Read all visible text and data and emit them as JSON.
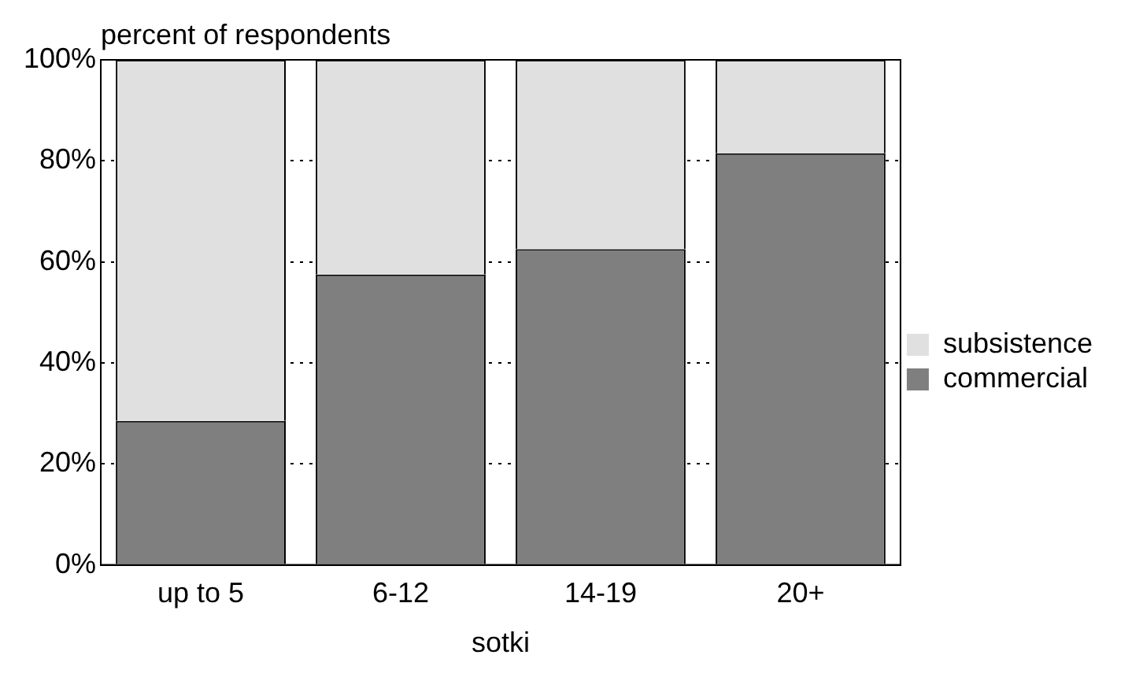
{
  "chart_data": {
    "type": "bar",
    "stacked": true,
    "ylabel": "percent of respondents",
    "xlabel": "sotki",
    "categories": [
      "up to 5",
      "6-12",
      "14-19",
      "20+"
    ],
    "series": [
      {
        "name": "commercial",
        "color": "#7f7f7f",
        "values": [
          28.5,
          57.5,
          62.5,
          81.5
        ]
      },
      {
        "name": "subsistence",
        "color": "#e0e0e0",
        "values": [
          71.5,
          42.5,
          37.5,
          18.5
        ]
      }
    ],
    "ylim": [
      0,
      100
    ],
    "yticks": [
      {
        "value": 0,
        "label": "0%"
      },
      {
        "value": 20,
        "label": "20%"
      },
      {
        "value": 40,
        "label": "40%"
      },
      {
        "value": 60,
        "label": "60%"
      },
      {
        "value": 80,
        "label": "80%"
      },
      {
        "value": 100,
        "label": "100%"
      }
    ],
    "grid": "y",
    "legend": "right"
  }
}
